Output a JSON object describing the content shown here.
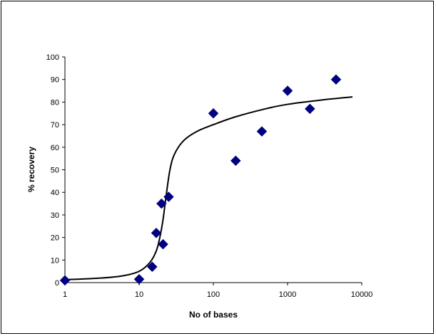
{
  "chart_data": {
    "type": "scatter",
    "title": "",
    "xlabel": "No of bases",
    "ylabel": "% recovery",
    "x_scale": "log",
    "xlim": [
      1,
      10000
    ],
    "ylim": [
      0,
      100
    ],
    "x_ticks": [
      "1",
      "10",
      "100",
      "1000",
      "10000"
    ],
    "y_ticks": [
      "0",
      "10",
      "20",
      "30",
      "40",
      "50",
      "60",
      "70",
      "80",
      "90",
      "100"
    ],
    "grid": false,
    "legend": "none",
    "marker_color": "#000080",
    "curve_color": "#000000",
    "points": [
      {
        "x": 1,
        "y": 1
      },
      {
        "x": 10,
        "y": 1.5
      },
      {
        "x": 15,
        "y": 7
      },
      {
        "x": 17,
        "y": 22
      },
      {
        "x": 20,
        "y": 35
      },
      {
        "x": 21,
        "y": 17
      },
      {
        "x": 25,
        "y": 38
      },
      {
        "x": 100,
        "y": 75
      },
      {
        "x": 200,
        "y": 54
      },
      {
        "x": 450,
        "y": 67
      },
      {
        "x": 1000,
        "y": 85
      },
      {
        "x": 2000,
        "y": 77
      },
      {
        "x": 4500,
        "y": 90
      }
    ],
    "fit_curve": [
      {
        "x": 1,
        "y": 1.3
      },
      {
        "x": 3,
        "y": 2
      },
      {
        "x": 6,
        "y": 3
      },
      {
        "x": 10,
        "y": 5
      },
      {
        "x": 14,
        "y": 9
      },
      {
        "x": 17,
        "y": 14
      },
      {
        "x": 19,
        "y": 20
      },
      {
        "x": 21,
        "y": 28
      },
      {
        "x": 23,
        "y": 38
      },
      {
        "x": 26,
        "y": 50
      },
      {
        "x": 30,
        "y": 57
      },
      {
        "x": 40,
        "y": 63
      },
      {
        "x": 60,
        "y": 67
      },
      {
        "x": 100,
        "y": 70
      },
      {
        "x": 200,
        "y": 73.5
      },
      {
        "x": 500,
        "y": 77
      },
      {
        "x": 1000,
        "y": 79
      },
      {
        "x": 3000,
        "y": 81
      },
      {
        "x": 7500,
        "y": 82.3
      }
    ]
  }
}
